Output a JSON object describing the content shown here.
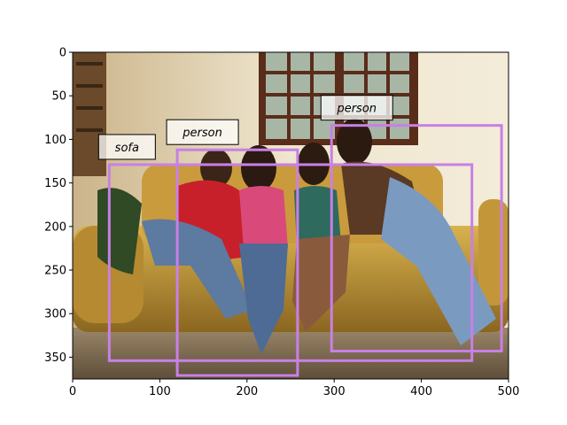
{
  "colors": {
    "box": "#c880e6",
    "label_bg": "#ffffff",
    "axis": "#000000"
  },
  "axes": {
    "x_ticks": [
      "0",
      "100",
      "200",
      "300",
      "400",
      "500"
    ],
    "y_ticks": [
      "0",
      "50",
      "100",
      "150",
      "200",
      "250",
      "300",
      "350"
    ]
  },
  "photo": {
    "description_icon": "photo-icon"
  },
  "detections": [
    {
      "label": "sofa",
      "x0": 42,
      "y0": 129,
      "x1": 458,
      "y1": 354
    },
    {
      "label": "person",
      "x0": 120,
      "y0": 112,
      "x1": 258,
      "y1": 371
    },
    {
      "label": "person",
      "x0": 297,
      "y0": 84,
      "x1": 492,
      "y1": 343
    }
  ],
  "chart_data": {
    "type": "scatter",
    "xlim": [
      0,
      500
    ],
    "ylim": [
      375,
      0
    ],
    "x_ticks": [
      0,
      100,
      200,
      300,
      400,
      500
    ],
    "y_ticks": [
      0,
      50,
      100,
      150,
      200,
      250,
      300,
      350
    ]
  }
}
